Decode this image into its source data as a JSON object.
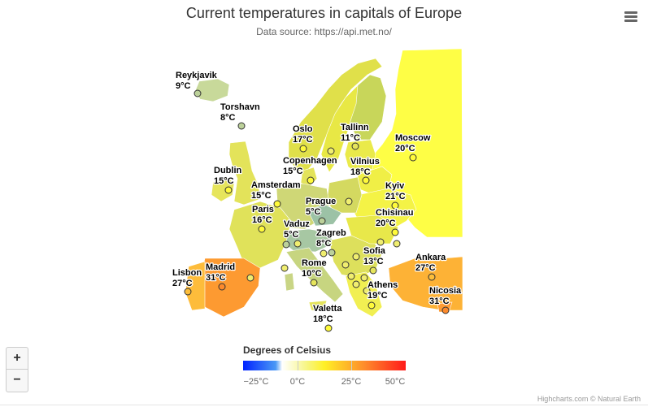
{
  "header": {
    "title": "Current temperatures in capitals of Europe",
    "subtitle": "Data source: https://api.met.no/",
    "menu_icon": "hamburger-menu-icon"
  },
  "controls": {
    "zoom_in": "+",
    "zoom_out": "−"
  },
  "legend": {
    "title": "Degrees of Celsius",
    "labels": [
      "−25°C",
      "0°C",
      "25°C",
      "50°C"
    ],
    "min": -25,
    "max": 50,
    "colors": [
      "#0022ff",
      "#4a98f5",
      "#ffffff",
      "#fff026",
      "#fe8a2b",
      "#ff1a1a"
    ]
  },
  "credits": "Highcharts.com © Natural Earth",
  "cities": [
    {
      "name": "Reykjavik",
      "temp": "9°C"
    },
    {
      "name": "Torshavn",
      "temp": "8°C"
    },
    {
      "name": "Oslo",
      "temp": "17°C"
    },
    {
      "name": "Tallinn",
      "temp": "11°C"
    },
    {
      "name": "Moscow",
      "temp": "20°C"
    },
    {
      "name": "Dublin",
      "temp": "15°C"
    },
    {
      "name": "Copenhagen",
      "temp": "15°C"
    },
    {
      "name": "Vilnius",
      "temp": "18°C"
    },
    {
      "name": "Amsterdam",
      "temp": "15°C"
    },
    {
      "name": "Kyiv",
      "temp": "21°C"
    },
    {
      "name": "Prague",
      "temp": "5°C"
    },
    {
      "name": "Paris",
      "temp": "16°C"
    },
    {
      "name": "Chisinau",
      "temp": "20°C"
    },
    {
      "name": "Vaduz",
      "temp": "5°C"
    },
    {
      "name": "Zagreb",
      "temp": "8°C"
    },
    {
      "name": "Sofia",
      "temp": "13°C"
    },
    {
      "name": "Ankara",
      "temp": "27°C"
    },
    {
      "name": "Madrid",
      "temp": "31°C"
    },
    {
      "name": "Rome",
      "temp": "10°C"
    },
    {
      "name": "Lisbon",
      "temp": "27°C"
    },
    {
      "name": "Athens",
      "temp": "19°C"
    },
    {
      "name": "Nicosia",
      "temp": "31°C"
    },
    {
      "name": "Valetta",
      "temp": "18°C"
    }
  ]
}
